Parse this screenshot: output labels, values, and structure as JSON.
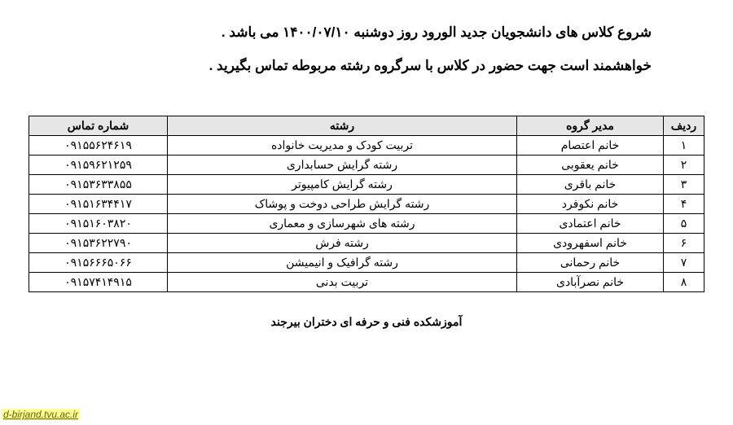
{
  "announcement": {
    "line1": "شروع کلاس های دانشجویان جدید الورود روز دوشنبه ۱۴۰۰/۰۷/۱۰ می باشد .",
    "line2": "خواهشمند است جهت حضور در کلاس با سرگروه رشته مربوطه تماس بگیرید ."
  },
  "table": {
    "headers": {
      "row": "ردیف",
      "manager": "مدیر گروه",
      "major": "رشته",
      "phone": "شماره تماس"
    },
    "rows": [
      {
        "n": "۱",
        "manager": "خانم اعتصام",
        "major": "تربیت کودک و مدیریت خانواده",
        "phone": "۰۹۱۵۵۶۲۴۶۱۹"
      },
      {
        "n": "۲",
        "manager": "خانم یعقوبی",
        "major": "رشته گرایش حسابداری",
        "phone": "۰۹۱۵۹۶۲۱۲۵۹"
      },
      {
        "n": "۳",
        "manager": "خانم باقری",
        "major": "رشته گرایش کامپیوتر",
        "phone": "۰۹۱۵۳۶۳۳۸۵۵"
      },
      {
        "n": "۴",
        "manager": "خانم نکوفرد",
        "major": "رشته گرایش طراحی دوخت و پوشاک",
        "phone": "۰۹۱۵۱۶۳۴۴۱۷"
      },
      {
        "n": "۵",
        "manager": "خانم اعتمادی",
        "major": "رشته های شهرسازی و معماری",
        "phone": "۰۹۱۵۱۶۰۳۸۲۰"
      },
      {
        "n": "۶",
        "manager": "خانم اسفهرودی",
        "major": "رشته فرش",
        "phone": "۰۹۱۵۳۶۲۲۷۹۰"
      },
      {
        "n": "۷",
        "manager": "خانم رحمانی",
        "major": "رشته گرافیک و انیمیشن",
        "phone": "۰۹۱۵۶۶۶۵۰۶۶"
      },
      {
        "n": "۸",
        "manager": "خانم نصرآبادی",
        "major": "تربیت بدنی",
        "phone": "۰۹۱۵۷۴۱۴۹۱۵"
      }
    ]
  },
  "footer": "آموزشکده فنی و حرفه ای دختران بیرجند",
  "watermark": "d-birjand.tvu.ac.ir",
  "style": {
    "header_bg": "#e6e6e6",
    "border_color": "#000000",
    "body_bg": "#ffffff",
    "text_color": "#000000",
    "watermark_bg": "#ffff99",
    "watermark_color": "#666600",
    "announcement_fontsize": 17,
    "table_fontsize": 14,
    "footer_fontsize": 14
  }
}
